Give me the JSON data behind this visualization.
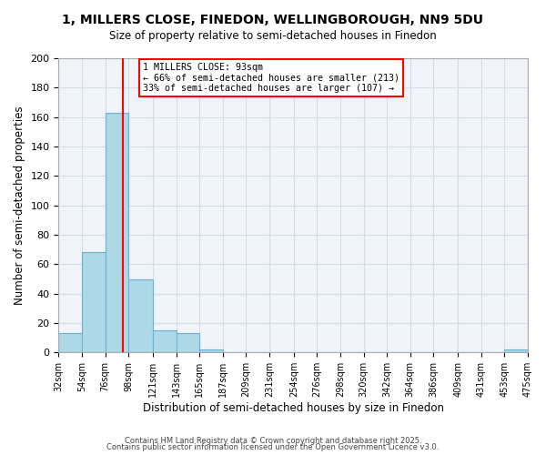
{
  "title": "1, MILLERS CLOSE, FINEDON, WELLINGBOROUGH, NN9 5DU",
  "subtitle": "Size of property relative to semi-detached houses in Finedon",
  "xlabel": "Distribution of semi-detached houses by size in Finedon",
  "ylabel": "Number of semi-detached properties",
  "bar_color": "#add8e6",
  "bar_edge_color": "#6ab0d4",
  "grid_color": "#d0dce8",
  "background_color": "#f0f4f8",
  "vline_x": 93,
  "vline_color": "red",
  "annotation_title": "1 MILLERS CLOSE: 93sqm",
  "annotation_line2": "← 66% of semi-detached houses are smaller (213)",
  "annotation_line3": "33% of semi-detached houses are larger (107) →",
  "bin_edges": [
    32,
    54,
    76,
    98,
    121,
    143,
    165,
    187,
    209,
    231,
    254,
    276,
    298,
    320,
    342,
    364,
    386,
    409,
    431,
    453,
    475
  ],
  "bin_labels": [
    "32sqm",
    "54sqm",
    "76sqm",
    "98sqm",
    "121sqm",
    "143sqm",
    "165sqm",
    "187sqm",
    "209sqm",
    "231sqm",
    "254sqm",
    "276sqm",
    "298sqm",
    "320sqm",
    "342sqm",
    "364sqm",
    "386sqm",
    "409sqm",
    "431sqm",
    "453sqm",
    "475sqm"
  ],
  "counts": [
    13,
    68,
    163,
    50,
    15,
    13,
    2,
    0,
    0,
    0,
    0,
    0,
    0,
    0,
    0,
    0,
    0,
    0,
    0,
    2
  ],
  "ylim": [
    0,
    200
  ],
  "yticks": [
    0,
    20,
    40,
    60,
    80,
    100,
    120,
    140,
    160,
    180,
    200
  ],
  "footer1": "Contains HM Land Registry data © Crown copyright and database right 2025.",
  "footer2": "Contains public sector information licensed under the Open Government Licence v3.0."
}
